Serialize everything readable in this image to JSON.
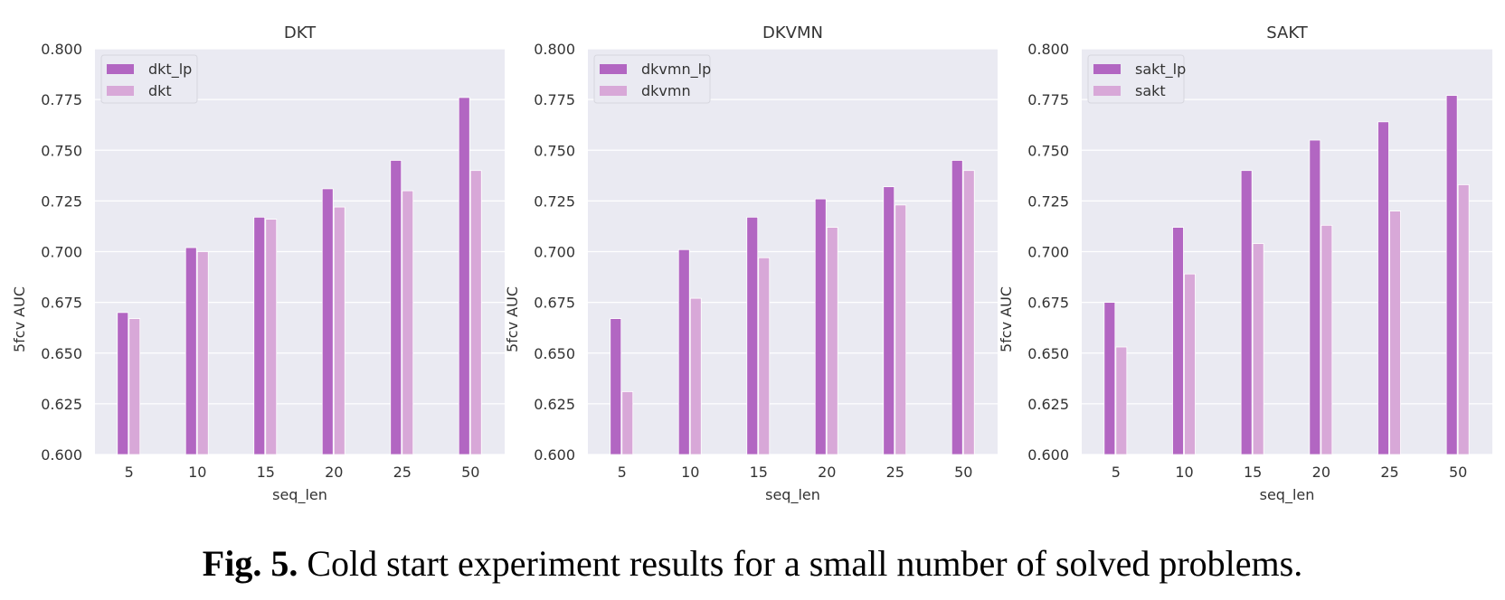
{
  "caption": {
    "label": "Fig. 5.",
    "text": " Cold start experiment results for a small number of solved problems."
  },
  "colors": {
    "lp": "#b266c2",
    "base": "#d8a8d8",
    "panel_bg": "#eaeaf2",
    "grid": "#ffffff"
  },
  "chart_data": [
    {
      "type": "bar",
      "title": "DKT",
      "xlabel": "seq_len",
      "ylabel": "5fcv AUC",
      "ylim": [
        0.6,
        0.8
      ],
      "yticks": [
        "0.600",
        "0.625",
        "0.650",
        "0.675",
        "0.700",
        "0.725",
        "0.750",
        "0.775",
        "0.800"
      ],
      "categories": [
        "5",
        "10",
        "15",
        "20",
        "25",
        "50"
      ],
      "legend_position": "top-left",
      "grid": true,
      "series": [
        {
          "name": "dkt_lp",
          "values": [
            0.67,
            0.702,
            0.717,
            0.731,
            0.745,
            0.776
          ]
        },
        {
          "name": "dkt",
          "values": [
            0.667,
            0.7,
            0.716,
            0.722,
            0.73,
            0.74
          ]
        }
      ]
    },
    {
      "type": "bar",
      "title": "DKVMN",
      "xlabel": "seq_len",
      "ylabel": "5fcv AUC",
      "ylim": [
        0.6,
        0.8
      ],
      "yticks": [
        "0.600",
        "0.625",
        "0.650",
        "0.675",
        "0.700",
        "0.725",
        "0.750",
        "0.775",
        "0.800"
      ],
      "categories": [
        "5",
        "10",
        "15",
        "20",
        "25",
        "50"
      ],
      "legend_position": "top-left",
      "grid": true,
      "series": [
        {
          "name": "dkvmn_lp",
          "values": [
            0.667,
            0.701,
            0.717,
            0.726,
            0.732,
            0.745
          ]
        },
        {
          "name": "dkvmn",
          "values": [
            0.631,
            0.677,
            0.697,
            0.712,
            0.723,
            0.74
          ]
        }
      ]
    },
    {
      "type": "bar",
      "title": "SAKT",
      "xlabel": "seq_len",
      "ylabel": "5fcv AUC",
      "ylim": [
        0.6,
        0.8
      ],
      "yticks": [
        "0.600",
        "0.625",
        "0.650",
        "0.675",
        "0.700",
        "0.725",
        "0.750",
        "0.775",
        "0.800"
      ],
      "categories": [
        "5",
        "10",
        "15",
        "20",
        "25",
        "50"
      ],
      "legend_position": "top-left",
      "grid": true,
      "series": [
        {
          "name": "sakt_lp",
          "values": [
            0.675,
            0.712,
            0.74,
            0.755,
            0.764,
            0.777
          ]
        },
        {
          "name": "sakt",
          "values": [
            0.653,
            0.689,
            0.704,
            0.713,
            0.72,
            0.733
          ]
        }
      ]
    }
  ]
}
